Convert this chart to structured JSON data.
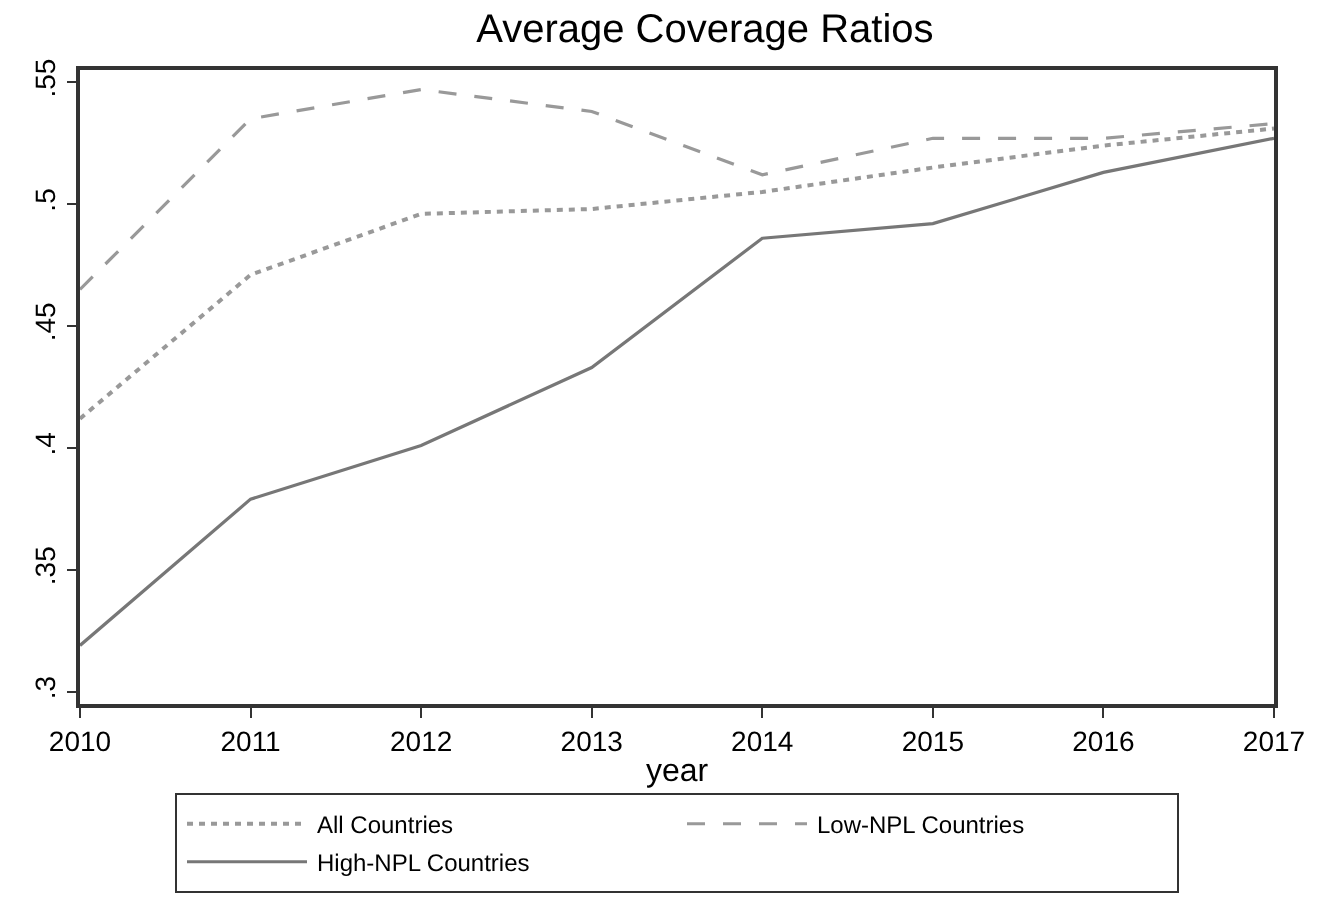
{
  "chart_data": {
    "type": "line",
    "title": "Average Coverage Ratios",
    "xlabel": "year",
    "x": [
      2010,
      2011,
      2012,
      2013,
      2014,
      2015,
      2016,
      2017
    ],
    "series": [
      {
        "name": "All Countries",
        "color": "#999999",
        "line_style": "dotted",
        "values": [
          0.412,
          0.471,
          0.496,
          0.498,
          0.505,
          0.515,
          0.524,
          0.531
        ]
      },
      {
        "name": "Low-NPL Countries",
        "color": "#999999",
        "line_style": "dashed",
        "values": [
          0.465,
          0.535,
          0.547,
          0.538,
          0.512,
          0.527,
          0.527,
          0.533
        ]
      },
      {
        "name": "High-NPL Countries",
        "color": "#777777",
        "line_style": "solid",
        "values": [
          0.319,
          0.379,
          0.401,
          0.433,
          0.486,
          0.492,
          0.513,
          0.527
        ]
      }
    ],
    "xlim": [
      2010,
      2017
    ],
    "xticks": [
      2010,
      2011,
      2012,
      2013,
      2014,
      2015,
      2016,
      2017
    ],
    "ylim": [
      0.295,
      0.555
    ],
    "yticks": [
      {
        "value": 0.3,
        "label": ".3"
      },
      {
        "value": 0.35,
        "label": ".35"
      },
      {
        "value": 0.4,
        "label": ".4"
      },
      {
        "value": 0.45,
        "label": ".45"
      },
      {
        "value": 0.5,
        "label": ".5"
      },
      {
        "value": 0.55,
        "label": ".55"
      }
    ],
    "legend": "bottom",
    "marker": "none"
  }
}
